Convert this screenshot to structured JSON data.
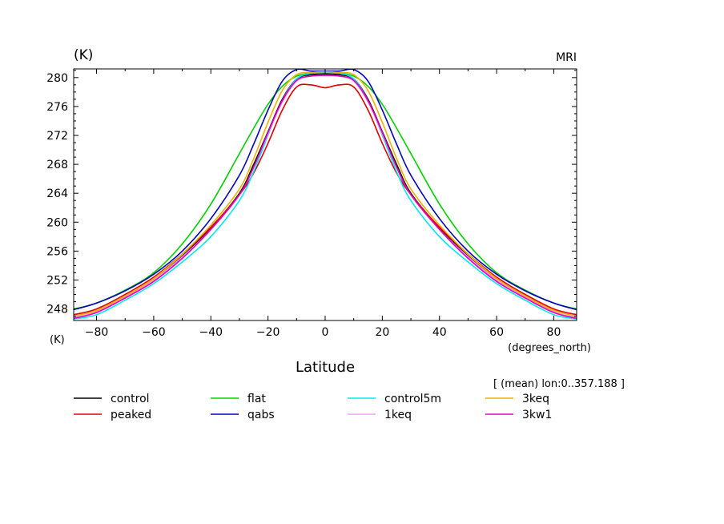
{
  "chart_data": {
    "type": "line",
    "title": "",
    "top_left_label": "(K)",
    "top_right_label": "MRI",
    "y_unit_label": "(K)",
    "x_unit_label": "(degrees_north)",
    "xlabel": "Latitude",
    "ylabel": "",
    "subset_note": "[ (mean) lon:0..357.188 ]",
    "xlim": [
      -88,
      88
    ],
    "ylim": [
      246.4,
      281.2
    ],
    "x_ticks": [
      -80,
      -60,
      -40,
      -20,
      0,
      20,
      40,
      60,
      80
    ],
    "x_tick_labels": [
      "−80",
      "−60",
      "−40",
      "−20",
      "0",
      "20",
      "40",
      "60",
      "80"
    ],
    "y_ticks": [
      248,
      252,
      256,
      260,
      264,
      268,
      272,
      276,
      280
    ],
    "y_tick_labels": [
      "248",
      "252",
      "256",
      "260",
      "264",
      "268",
      "272",
      "276",
      "280"
    ],
    "grid": false,
    "legend_position": "bottom",
    "series": [
      {
        "name": "control",
        "color": "#000000",
        "x": [
          -88,
          -80,
          -70,
          -60,
          -50,
          -40,
          -30,
          -25,
          -20,
          -15,
          -10,
          -5,
          0,
          5,
          10,
          15,
          20,
          25,
          30,
          40,
          50,
          60,
          70,
          80,
          88
        ],
        "y": [
          246.7,
          247.6,
          249.6,
          252.0,
          255.3,
          259.2,
          264.0,
          268.0,
          272.5,
          277.0,
          279.8,
          280.4,
          280.5,
          280.4,
          279.8,
          277.0,
          272.5,
          268.0,
          264.0,
          259.2,
          255.3,
          252.0,
          249.6,
          247.6,
          246.7
        ]
      },
      {
        "name": "peaked",
        "color": "#e00000",
        "x": [
          -88,
          -80,
          -70,
          -60,
          -50,
          -40,
          -30,
          -25,
          -20,
          -15,
          -10,
          -5,
          0,
          5,
          10,
          15,
          20,
          25,
          30,
          40,
          50,
          60,
          70,
          80,
          88
        ],
        "y": [
          247.2,
          248.0,
          250.0,
          252.4,
          255.6,
          259.3,
          263.8,
          266.8,
          270.9,
          275.5,
          278.7,
          279.0,
          278.6,
          279.0,
          278.7,
          275.5,
          270.9,
          266.8,
          263.8,
          259.3,
          255.6,
          252.4,
          250.0,
          248.0,
          247.2
        ]
      },
      {
        "name": "flat",
        "color": "#00d000",
        "x": [
          -88,
          -80,
          -70,
          -60,
          -50,
          -40,
          -30,
          -25,
          -20,
          -15,
          -10,
          -5,
          0,
          5,
          10,
          15,
          20,
          25,
          30,
          40,
          50,
          60,
          70,
          80,
          88
        ],
        "y": [
          248.0,
          248.8,
          250.6,
          253.0,
          257.0,
          262.5,
          269.5,
          273.0,
          276.3,
          278.8,
          280.2,
          280.6,
          280.7,
          280.6,
          280.2,
          278.8,
          276.3,
          273.0,
          269.5,
          262.5,
          257.0,
          253.0,
          250.6,
          248.8,
          248.0
        ]
      },
      {
        "name": "qabs",
        "color": "#0000c0",
        "x": [
          -88,
          -80,
          -70,
          -60,
          -50,
          -40,
          -30,
          -25,
          -20,
          -15,
          -10,
          -5,
          0,
          5,
          10,
          15,
          20,
          25,
          30,
          40,
          50,
          60,
          70,
          80,
          88
        ],
        "y": [
          247.9,
          248.8,
          250.5,
          252.8,
          256.0,
          260.5,
          266.5,
          270.8,
          275.5,
          279.5,
          281.1,
          280.9,
          280.9,
          280.9,
          281.1,
          279.5,
          275.5,
          270.8,
          266.5,
          260.5,
          256.0,
          252.8,
          250.5,
          248.8,
          247.9
        ]
      },
      {
        "name": "control5m",
        "color": "#00e8f0",
        "x": [
          -88,
          -80,
          -70,
          -60,
          -50,
          -40,
          -30,
          -25,
          -20,
          -15,
          -10,
          -5,
          0,
          5,
          10,
          15,
          20,
          25,
          30,
          40,
          50,
          60,
          70,
          80,
          88
        ],
        "y": [
          246.6,
          247.2,
          249.2,
          251.5,
          254.5,
          258.0,
          263.0,
          267.0,
          272.0,
          276.8,
          279.8,
          280.6,
          280.7,
          280.6,
          279.8,
          276.8,
          272.0,
          267.0,
          263.0,
          258.0,
          254.5,
          251.5,
          249.2,
          247.2,
          246.6
        ]
      },
      {
        "name": "1keq",
        "color": "#f0a0f0",
        "x": [
          -88,
          -80,
          -70,
          -60,
          -50,
          -40,
          -30,
          -25,
          -20,
          -15,
          -10,
          -5,
          0,
          5,
          10,
          15,
          20,
          25,
          30,
          40,
          50,
          60,
          70,
          80,
          88
        ],
        "y": [
          246.8,
          247.6,
          249.6,
          252.0,
          255.2,
          259.0,
          263.8,
          267.6,
          272.2,
          276.6,
          279.5,
          280.2,
          280.3,
          280.2,
          279.5,
          276.6,
          272.2,
          267.6,
          263.8,
          259.0,
          255.2,
          252.0,
          249.6,
          247.6,
          246.8
        ]
      },
      {
        "name": "3keq",
        "color": "#f0b000",
        "x": [
          -88,
          -80,
          -70,
          -60,
          -50,
          -40,
          -30,
          -25,
          -20,
          -15,
          -10,
          -5,
          0,
          5,
          10,
          15,
          20,
          25,
          30,
          40,
          50,
          60,
          70,
          80,
          88
        ],
        "y": [
          247.0,
          247.8,
          249.8,
          252.2,
          255.6,
          259.6,
          264.6,
          268.8,
          273.8,
          278.2,
          280.4,
          280.7,
          280.8,
          280.7,
          280.4,
          278.2,
          273.8,
          268.8,
          264.6,
          259.6,
          255.6,
          252.2,
          249.8,
          247.8,
          247.0
        ]
      },
      {
        "name": "3kw1",
        "color": "#e000c0",
        "x": [
          -88,
          -80,
          -70,
          -60,
          -50,
          -40,
          -30,
          -25,
          -20,
          -15,
          -10,
          -5,
          0,
          5,
          10,
          15,
          20,
          25,
          30,
          40,
          50,
          60,
          70,
          80,
          88
        ],
        "y": [
          246.7,
          247.5,
          249.5,
          251.8,
          255.0,
          259.0,
          263.8,
          267.6,
          272.4,
          276.8,
          279.6,
          280.2,
          280.3,
          280.2,
          279.6,
          276.8,
          272.4,
          267.6,
          263.8,
          259.0,
          255.0,
          251.8,
          249.5,
          247.5,
          246.7
        ]
      }
    ]
  }
}
